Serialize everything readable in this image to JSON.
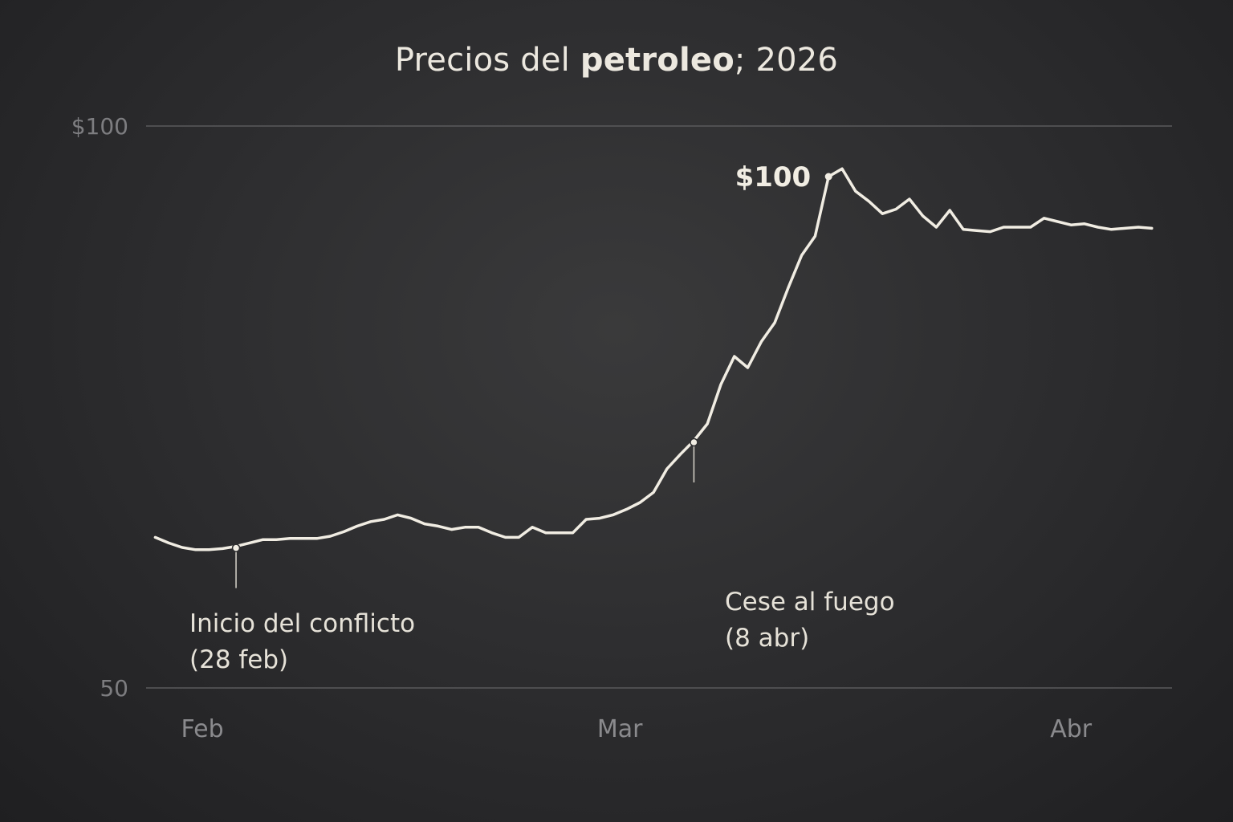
{
  "chart_data": {
    "type": "line",
    "title_parts": {
      "pre": "Precios del ",
      "bold": "petroleo",
      "post": "; 2026"
    },
    "y_ticks": [
      {
        "value": 100,
        "label": "$100"
      },
      {
        "value": 50,
        "label": "50"
      }
    ],
    "ylim": [
      50,
      100
    ],
    "x_ticks": [
      {
        "label": "Feb",
        "day": 4
      },
      {
        "label": "Mar",
        "day": 35
      },
      {
        "label": "Abr",
        "day": 68.5
      }
    ],
    "xlim": [
      0,
      76
    ],
    "grid": "horizontal",
    "series": [
      {
        "x": [
          0.5,
          1.5,
          2.5,
          3.5,
          4.5,
          5.5,
          6.5,
          7.5,
          8.5,
          9.5,
          10.5,
          11.5,
          12.5,
          13.5,
          14.5,
          15.5,
          16.5,
          17.5,
          18.5,
          19.5,
          20.5,
          21.5,
          22.5,
          23.5,
          24.5,
          25.5,
          26.5,
          27.5,
          28.5,
          29.5,
          30.5,
          31.5,
          32.5,
          33.5,
          34.5,
          35.5,
          36.5,
          37.5,
          38.5,
          39.5,
          40.5,
          41.5,
          42.5,
          43.5,
          44.5,
          45.5,
          46.5,
          47.5,
          48.5,
          49.5,
          50.5,
          51.5,
          52.5,
          53.5,
          54.5,
          55.5,
          56.5,
          57.5,
          58.5,
          59.5,
          60.5,
          61.5,
          62.5,
          63.5,
          64.5,
          65.5,
          66.5,
          67.5,
          68.5,
          69.5,
          70.5,
          71.5,
          72.5,
          73.5,
          74.5
        ],
        "values": [
          63.4,
          62.9,
          62.5,
          62.3,
          62.3,
          62.4,
          62.6,
          62.9,
          63.2,
          63.2,
          63.3,
          63.3,
          63.3,
          63.5,
          63.9,
          64.4,
          64.8,
          65.0,
          65.4,
          65.1,
          64.6,
          64.4,
          64.1,
          64.3,
          64.3,
          63.8,
          63.4,
          63.4,
          64.3,
          63.8,
          63.8,
          63.8,
          65.0,
          65.1,
          65.4,
          65.9,
          66.5,
          67.4,
          69.5,
          70.8,
          72.0,
          73.5,
          77.0,
          79.5,
          78.5,
          80.8,
          82.5,
          85.6,
          88.5,
          90.2,
          95.5,
          96.2,
          94.2,
          93.3,
          92.2,
          92.6,
          93.5,
          92.0,
          91.0,
          92.5,
          90.8,
          90.7,
          90.6,
          91.0,
          91.0,
          91.0,
          91.8,
          91.5,
          91.2,
          91.3,
          91.0,
          90.8,
          90.9,
          91.0,
          90.9
        ]
      }
    ],
    "annotations": [
      {
        "label_line1": "Inicio del conflicto",
        "label_line2": "(28 feb)",
        "day": 6.5
      },
      {
        "label_line1": "Cese al fuego",
        "label_line2": "(8 abr)",
        "day": 40.5
      }
    ],
    "peak_label": "$100",
    "peak_day": 50.5
  }
}
